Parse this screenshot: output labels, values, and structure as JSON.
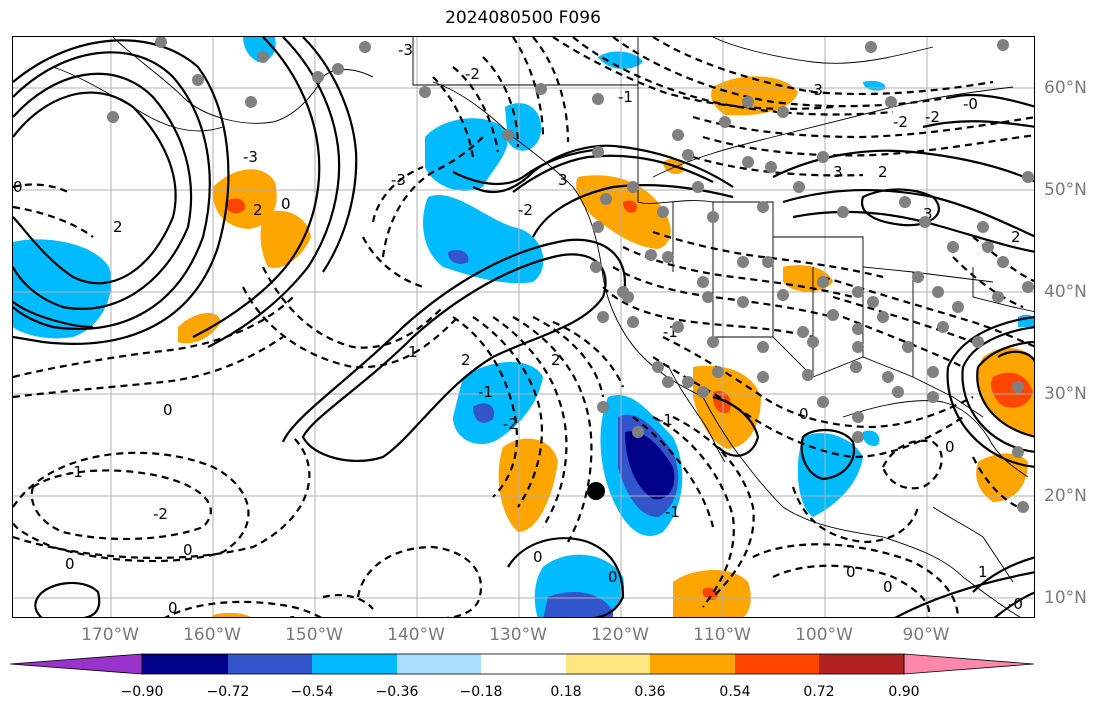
{
  "title": "2024080500 F096",
  "colors": {
    "shading": [
      "#9933cc",
      "#000088",
      "#3355cc",
      "#00bbff",
      "#aadeff",
      "#ffffff",
      "#ffe680",
      "#ffa500",
      "#ff4500",
      "#b22222",
      "#ff88aa"
    ],
    "contour": "#000000",
    "dots": "#808080",
    "grid": "#b0b0b0",
    "axis_label": "#7a7a7a"
  },
  "lon_labels": [
    "170°W",
    "160°W",
    "150°W",
    "140°W",
    "130°W",
    "120°W",
    "110°W",
    "100°W",
    "90°W"
  ],
  "lat_labels": [
    "60°N",
    "50°N",
    "40°N",
    "30°N",
    "20°N",
    "10°N"
  ],
  "colorbar": {
    "ticks": [
      "−0.90",
      "−0.72",
      "−0.54",
      "−0.36",
      "−0.18",
      "0.18",
      "0.36",
      "0.54",
      "0.72",
      "0.90"
    ],
    "extend": "both"
  },
  "contour_labels": [
    "-3",
    "-3",
    "-2",
    "-3",
    "-2",
    "-1",
    "-2",
    "-3",
    "-2",
    "-1",
    "0",
    "2",
    "0",
    "2",
    "1",
    "2",
    "-1",
    "0",
    "-2",
    "0",
    "0",
    "0",
    "-1",
    "-2",
    "0",
    "-1",
    "0",
    "0",
    "2",
    "3",
    "3",
    "3",
    "-1",
    "2",
    "0",
    "-0",
    "0",
    "1",
    "-0",
    "-1",
    "0",
    "2"
  ],
  "marker": "filled black circle"
}
